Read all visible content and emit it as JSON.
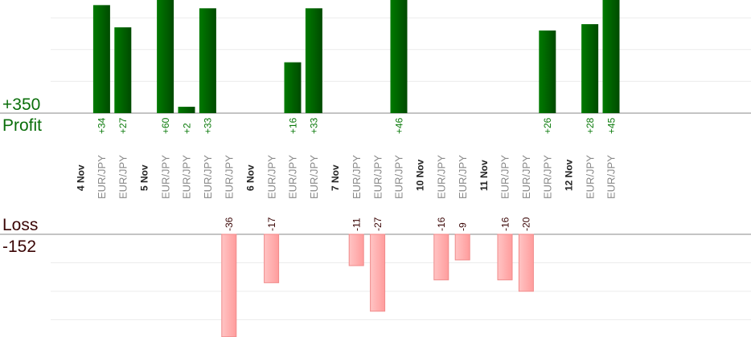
{
  "chart_data": {
    "type": "bar",
    "title": "",
    "profit": {
      "label": "Profit",
      "total": "+350",
      "color": "#006400",
      "ylim": [
        0,
        35
      ]
    },
    "loss": {
      "label": "Loss",
      "total": "-152",
      "color": "#ffaaaa",
      "ylim": [
        -32,
        0
      ]
    },
    "groups": [
      {
        "date": "4 Nov",
        "trades": [
          {
            "pair": "EUR/JPY",
            "value": 34
          },
          {
            "pair": "EUR/JPY",
            "value": 27
          }
        ]
      },
      {
        "date": "5 Nov",
        "trades": [
          {
            "pair": "EUR/JPY",
            "value": 60
          },
          {
            "pair": "EUR/JPY",
            "value": 2
          },
          {
            "pair": "EUR/JPY",
            "value": 33
          },
          {
            "pair": "EUR/JPY",
            "value": -36
          }
        ]
      },
      {
        "date": "6 Nov",
        "trades": [
          {
            "pair": "EUR/JPY",
            "value": -17
          },
          {
            "pair": "EUR/JPY",
            "value": 16
          },
          {
            "pair": "EUR/JPY",
            "value": 33
          }
        ]
      },
      {
        "date": "7 Nov",
        "trades": [
          {
            "pair": "EUR/JPY",
            "value": -11
          },
          {
            "pair": "EUR/JPY",
            "value": -27
          },
          {
            "pair": "EUR/JPY",
            "value": 46
          }
        ]
      },
      {
        "date": "10 Nov",
        "trades": [
          {
            "pair": "EUR/JPY",
            "value": -16
          },
          {
            "pair": "EUR/JPY",
            "value": -9
          }
        ]
      },
      {
        "date": "11 Nov",
        "trades": [
          {
            "pair": "EUR/JPY",
            "value": -16
          },
          {
            "pair": "EUR/JPY",
            "value": -20
          },
          {
            "pair": "EUR/JPY",
            "value": 26
          }
        ]
      },
      {
        "date": "12 Nov",
        "trades": [
          {
            "pair": "EUR/JPY",
            "value": 28
          },
          {
            "pair": "EUR/JPY",
            "value": 45
          }
        ]
      }
    ]
  }
}
